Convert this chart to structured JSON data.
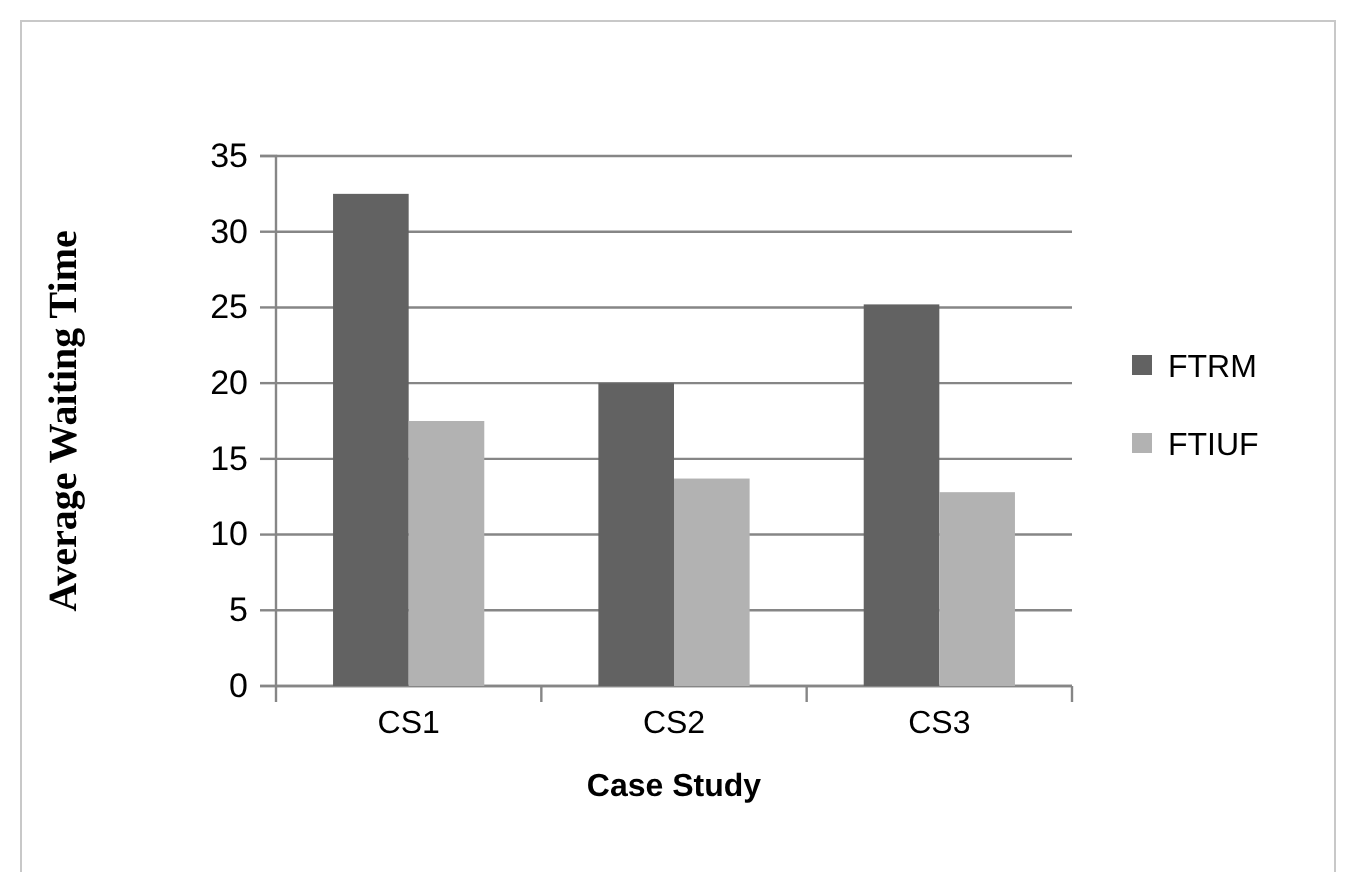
{
  "chart_data": {
    "type": "bar",
    "xlabel": "Case Study",
    "ylabel": "Average Waiting Time",
    "categories": [
      "CS1",
      "CS2",
      "CS3"
    ],
    "series": [
      {
        "name": "FTRM",
        "color": "#626262",
        "values": [
          32.5,
          20,
          25.2
        ]
      },
      {
        "name": "FTIUF",
        "color": "#b2b2b2",
        "values": [
          17.5,
          13.7,
          12.8
        ]
      }
    ],
    "ylim": [
      0,
      35
    ],
    "yticks": [
      0,
      5,
      10,
      15,
      20,
      25,
      30,
      35
    ],
    "grid": "y",
    "legend": "right"
  }
}
